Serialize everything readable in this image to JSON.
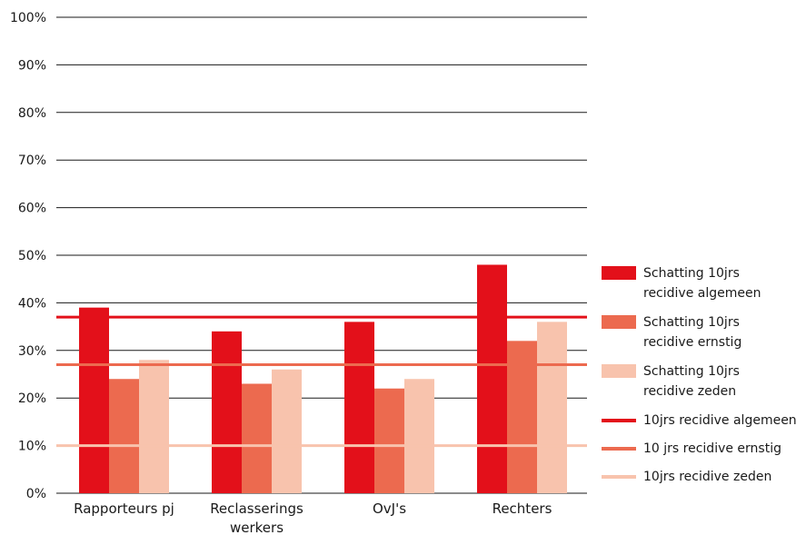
{
  "chart_data": {
    "type": "bar",
    "categories": [
      "Rapporteurs pj",
      "Reclasserings werkers",
      "OvJ's",
      "Rechters"
    ],
    "category_labels": [
      [
        "Rapporteurs pj"
      ],
      [
        "Reclasserings",
        "werkers"
      ],
      [
        "OvJ's"
      ],
      [
        "Rechters"
      ]
    ],
    "series": [
      {
        "name": "Schatting 10jrs recidive algemeen",
        "values": [
          39,
          34,
          36,
          48
        ],
        "color": "#e3101a"
      },
      {
        "name": "Schatting 10jrs recidive ernstig",
        "values": [
          24,
          23,
          22,
          32
        ],
        "color": "#ec6a4f"
      },
      {
        "name": "Schatting 10jrs recidive zeden",
        "values": [
          28,
          26,
          24,
          36
        ],
        "color": "#f8c3ad"
      }
    ],
    "reference_lines": [
      {
        "name": "10jrs recidive algemeen",
        "value": 37,
        "color": "#e3101a"
      },
      {
        "name": "10 jrs recidive ernstig",
        "value": 27,
        "color": "#ec6a4f"
      },
      {
        "name": "10jrs recidive zeden",
        "value": 10,
        "color": "#f8c3ad"
      }
    ],
    "ylim": [
      0,
      100
    ],
    "yticks": [
      "0%",
      "10%",
      "20%",
      "30%",
      "40%",
      "50%",
      "60%",
      "70%",
      "80%",
      "90%",
      "100%"
    ],
    "grid": true,
    "legend_position": "right"
  },
  "legend": {
    "bars": [
      {
        "line1": "Schatting 10jrs",
        "line2": "recidive algemeen"
      },
      {
        "line1": "Schatting 10jrs",
        "line2": "recidive ernstig"
      },
      {
        "line1": "Schatting 10jrs",
        "line2": "recidive zeden"
      }
    ],
    "lines": [
      {
        "label": "10jrs recidive algemeen"
      },
      {
        "label": "10 jrs recidive ernstig"
      },
      {
        "label": "10jrs recidive zeden"
      }
    ]
  }
}
